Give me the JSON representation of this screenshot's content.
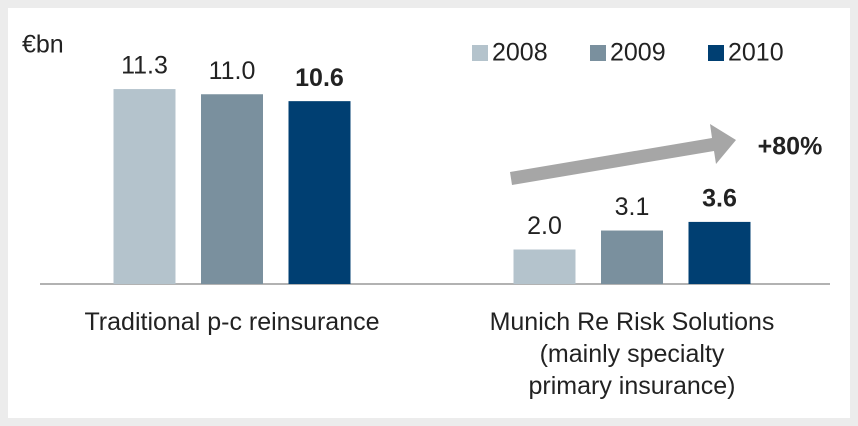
{
  "chart_data": {
    "type": "bar",
    "unit": "€bn",
    "categories": [
      "Traditional p-c reinsurance",
      "Munich Re Risk Solutions\n(mainly specialty\nprimary insurance)"
    ],
    "series": [
      {
        "name": "2008",
        "color": "#b4c3cc",
        "values": [
          11.3,
          2.0
        ],
        "value_labels": [
          "11.3",
          "2.0"
        ]
      },
      {
        "name": "2009",
        "color": "#7a909e",
        "values": [
          11.0,
          3.1
        ],
        "value_labels": [
          "11.0",
          "3.1"
        ]
      },
      {
        "name": "2010",
        "color": "#003f72",
        "values": [
          10.6,
          3.6
        ],
        "value_labels": [
          "10.6",
          "3.6"
        ],
        "bold": true
      }
    ],
    "annotation": "+80%",
    "ylim": [
      0,
      12
    ],
    "legend": "top-right"
  }
}
